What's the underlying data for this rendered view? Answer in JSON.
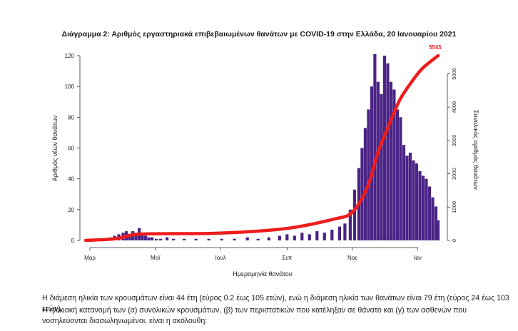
{
  "chart_data": {
    "type": "bar",
    "title": "Διάγραμμα 2: Αριθμός εργαστηριακά επιβεβαιωμένων θανάτων με COVID-19 στην Ελλάδα, 20 Ιανουαρίου 2021",
    "xlabel": "Ημερομηνία θανάτου",
    "ylabel": "Αριθμός νέων θανάτων",
    "y2label": "Συνολικός αριθμός θανάτων",
    "ylim": [
      0,
      120
    ],
    "y2lim": [
      0,
      5545
    ],
    "yticks": [
      0,
      20,
      40,
      60,
      80,
      100,
      120
    ],
    "y2ticks": [
      0,
      1000,
      2000,
      3000,
      4000,
      5000
    ],
    "x_tick_labels": [
      "Μαρ",
      "Μαϊ",
      "Ιουλ",
      "Σεπ",
      "Νοε",
      "Ιαν"
    ],
    "x_tick_dates": [
      "2020-03-01",
      "2020-05-01",
      "2020-07-01",
      "2020-09-01",
      "2020-11-01",
      "2021-01-01"
    ],
    "x_range": [
      "2020-02-26",
      "2021-01-20"
    ],
    "bar_color": "#4b2486",
    "cumulative_color": "#ee1c1c",
    "cumulative_final_label": "5545",
    "series": [
      {
        "name": "Αριθμός νέων θανάτων",
        "kind": "bar",
        "color": "#4b2486",
        "points": [
          {
            "x": "2020-03-12",
            "y": 1
          },
          {
            "x": "2020-03-16",
            "y": 1
          },
          {
            "x": "2020-03-20",
            "y": 2
          },
          {
            "x": "2020-03-24",
            "y": 3
          },
          {
            "x": "2020-03-28",
            "y": 4
          },
          {
            "x": "2020-04-01",
            "y": 5
          },
          {
            "x": "2020-04-04",
            "y": 6
          },
          {
            "x": "2020-04-07",
            "y": 4
          },
          {
            "x": "2020-04-10",
            "y": 6
          },
          {
            "x": "2020-04-13",
            "y": 5
          },
          {
            "x": "2020-04-16",
            "y": 8
          },
          {
            "x": "2020-04-19",
            "y": 4
          },
          {
            "x": "2020-04-22",
            "y": 3
          },
          {
            "x": "2020-04-25",
            "y": 2
          },
          {
            "x": "2020-04-28",
            "y": 2
          },
          {
            "x": "2020-05-02",
            "y": 1
          },
          {
            "x": "2020-05-06",
            "y": 1
          },
          {
            "x": "2020-05-12",
            "y": 2
          },
          {
            "x": "2020-05-18",
            "y": 1
          },
          {
            "x": "2020-05-28",
            "y": 1
          },
          {
            "x": "2020-06-08",
            "y": 1
          },
          {
            "x": "2020-06-20",
            "y": 1
          },
          {
            "x": "2020-07-02",
            "y": 1
          },
          {
            "x": "2020-07-14",
            "y": 1
          },
          {
            "x": "2020-07-26",
            "y": 2
          },
          {
            "x": "2020-08-05",
            "y": 1
          },
          {
            "x": "2020-08-15",
            "y": 2
          },
          {
            "x": "2020-08-25",
            "y": 3
          },
          {
            "x": "2020-09-01",
            "y": 4
          },
          {
            "x": "2020-09-08",
            "y": 3
          },
          {
            "x": "2020-09-15",
            "y": 5
          },
          {
            "x": "2020-09-22",
            "y": 4
          },
          {
            "x": "2020-09-29",
            "y": 6
          },
          {
            "x": "2020-10-06",
            "y": 5
          },
          {
            "x": "2020-10-13",
            "y": 7
          },
          {
            "x": "2020-10-20",
            "y": 9
          },
          {
            "x": "2020-10-25",
            "y": 11
          },
          {
            "x": "2020-10-30",
            "y": 20
          },
          {
            "x": "2020-11-03",
            "y": 33
          },
          {
            "x": "2020-11-07",
            "y": 47
          },
          {
            "x": "2020-11-10",
            "y": 60
          },
          {
            "x": "2020-11-13",
            "y": 73
          },
          {
            "x": "2020-11-16",
            "y": 85
          },
          {
            "x": "2020-11-19",
            "y": 100
          },
          {
            "x": "2020-11-22",
            "y": 121
          },
          {
            "x": "2020-11-25",
            "y": 103
          },
          {
            "x": "2020-11-28",
            "y": 95
          },
          {
            "x": "2020-12-01",
            "y": 120
          },
          {
            "x": "2020-12-04",
            "y": 115
          },
          {
            "x": "2020-12-07",
            "y": 103
          },
          {
            "x": "2020-12-10",
            "y": 98
          },
          {
            "x": "2020-12-13",
            "y": 85
          },
          {
            "x": "2020-12-16",
            "y": 80
          },
          {
            "x": "2020-12-19",
            "y": 62
          },
          {
            "x": "2020-12-22",
            "y": 55
          },
          {
            "x": "2020-12-25",
            "y": 57
          },
          {
            "x": "2020-12-28",
            "y": 52
          },
          {
            "x": "2020-12-31",
            "y": 50
          },
          {
            "x": "2021-01-03",
            "y": 45
          },
          {
            "x": "2021-01-06",
            "y": 42
          },
          {
            "x": "2021-01-09",
            "y": 40
          },
          {
            "x": "2021-01-12",
            "y": 35
          },
          {
            "x": "2021-01-15",
            "y": 28
          },
          {
            "x": "2021-01-18",
            "y": 22
          },
          {
            "x": "2021-01-20",
            "y": 13
          }
        ]
      },
      {
        "name": "Συνολικός αριθμός θανάτων",
        "kind": "line",
        "axis": "right",
        "color": "#ee1c1c",
        "points": [
          {
            "x": "2020-02-26",
            "y": 0
          },
          {
            "x": "2020-03-25",
            "y": 50
          },
          {
            "x": "2020-04-10",
            "y": 170
          },
          {
            "x": "2020-05-01",
            "y": 200
          },
          {
            "x": "2020-07-01",
            "y": 220
          },
          {
            "x": "2020-09-01",
            "y": 360
          },
          {
            "x": "2020-10-15",
            "y": 640
          },
          {
            "x": "2020-11-01",
            "y": 850
          },
          {
            "x": "2020-11-15",
            "y": 1600
          },
          {
            "x": "2020-11-25",
            "y": 2650
          },
          {
            "x": "2020-12-05",
            "y": 3450
          },
          {
            "x": "2020-12-15",
            "y": 4200
          },
          {
            "x": "2020-12-25",
            "y": 4700
          },
          {
            "x": "2021-01-05",
            "y": 5150
          },
          {
            "x": "2021-01-20",
            "y": 5545
          }
        ]
      }
    ]
  },
  "captions": {
    "line1": "Η διάμεση ηλικία των κρουσμάτων είναι 44 έτη (εύρος 0.2 έως 105 ετών), ενώ η διάμεση ηλικία των θανάτων είναι 79 έτη (εύρος 24 έως 103 ετών).",
    "line2": "Η ηλικιακή κατανομή των (α) συνολικών κρουσμάτων, (β) των περιστατικών που κατέληξαν σε θάνατο και (γ) των ασθενών που νοσηλεύονται διασωληνωμένοι, είναι η ακόλουθη:"
  }
}
